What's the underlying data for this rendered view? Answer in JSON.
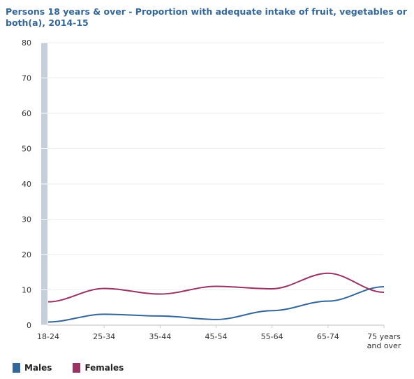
{
  "chart_data": {
    "type": "line",
    "title": "Persons 18 years & over - Proportion with adequate intake of fruit, vegetables or both(a), 2014-15",
    "categories": [
      "18-24",
      "25-34",
      "35-44",
      "45-54",
      "55-64",
      "65-74",
      "75 years and over"
    ],
    "category_lines": [
      [
        "18-24"
      ],
      [
        "25-34"
      ],
      [
        "35-44"
      ],
      [
        "45-54"
      ],
      [
        "55-64"
      ],
      [
        "65-74"
      ],
      [
        "75 years",
        "and over"
      ]
    ],
    "series": [
      {
        "name": "Males",
        "color": "#336699",
        "values": [
          0.9,
          3.1,
          2.6,
          1.6,
          4.1,
          6.8,
          10.9
        ]
      },
      {
        "name": "Females",
        "color": "#993366",
        "values": [
          6.6,
          10.4,
          8.8,
          11.0,
          10.3,
          14.7,
          9.3
        ]
      }
    ],
    "ylim": [
      0,
      80
    ],
    "yticks": [
      0,
      10,
      20,
      30,
      40,
      50,
      60,
      70,
      80
    ],
    "grid": true,
    "legend_position": "bottom-left"
  }
}
